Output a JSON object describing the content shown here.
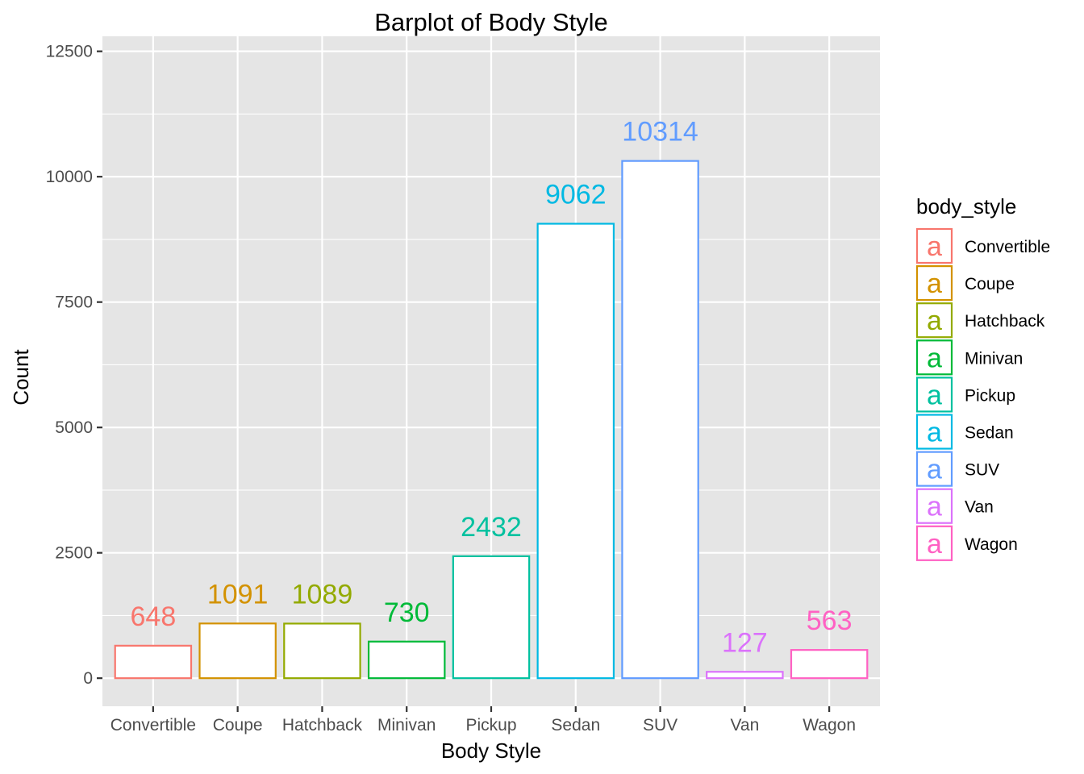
{
  "chart_data": {
    "type": "bar",
    "title": "Barplot of Body Style",
    "xlabel": "Body Style",
    "ylabel": "Count",
    "categories": [
      "Convertible",
      "Coupe",
      "Hatchback",
      "Minivan",
      "Pickup",
      "Sedan",
      "SUV",
      "Van",
      "Wagon"
    ],
    "values": [
      648,
      1091,
      1089,
      730,
      2432,
      9062,
      10314,
      127,
      563
    ],
    "value_labels": [
      "648",
      "1091",
      "1089",
      "730",
      "2432",
      "9062",
      "10314",
      "127",
      "563"
    ],
    "colors": [
      "#F8766D",
      "#D39200",
      "#93AA00",
      "#00BA38",
      "#00C19F",
      "#00B9E3",
      "#619CFF",
      "#DB72FB",
      "#FF61C3"
    ],
    "bar_fill": "#ffffff",
    "panel_background": "#e5e5e5",
    "grid_color": "#ffffff",
    "ylim": [
      -560,
      12800
    ],
    "y_ticks": [
      0,
      2500,
      5000,
      7500,
      10000,
      12500
    ],
    "y_tick_labels": [
      "0",
      "2500",
      "5000",
      "7500",
      "10000",
      "12500"
    ],
    "grid": true,
    "legend": {
      "title": "body_style",
      "position": "right",
      "key_glyph": "a",
      "entries": [
        "Convertible",
        "Coupe",
        "Hatchback",
        "Minivan",
        "Pickup",
        "Sedan",
        "SUV",
        "Van",
        "Wagon"
      ]
    }
  }
}
